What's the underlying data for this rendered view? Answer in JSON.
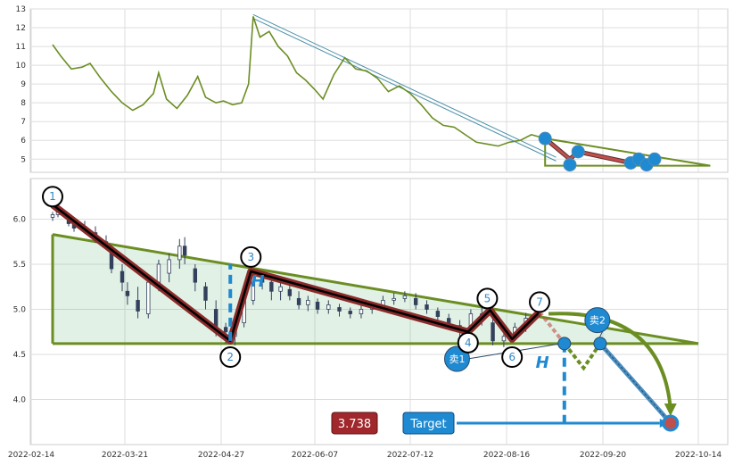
{
  "chart_data": [
    {
      "type": "line",
      "panel": "top",
      "ylim": [
        4.3,
        13
      ],
      "yticks": [
        "5",
        "6",
        "7",
        "8",
        "9",
        "10",
        "11",
        "12",
        "13"
      ],
      "series": [
        {
          "color": "#6b8e23",
          "points": [
            [
              "2022-02-22",
              11.1
            ],
            [
              "2022-02-25",
              10.5
            ],
            [
              "2022-03-01",
              9.8
            ],
            [
              "2022-03-05",
              9.9
            ],
            [
              "2022-03-08",
              10.1
            ],
            [
              "2022-03-12",
              9.3
            ],
            [
              "2022-03-16",
              8.6
            ],
            [
              "2022-03-20",
              8.0
            ],
            [
              "2022-03-24",
              7.6
            ],
            [
              "2022-03-28",
              7.9
            ],
            [
              "2022-04-01",
              8.5
            ],
            [
              "2022-04-03",
              9.6
            ],
            [
              "2022-04-06",
              8.2
            ],
            [
              "2022-04-10",
              7.7
            ],
            [
              "2022-04-14",
              8.4
            ],
            [
              "2022-04-18",
              9.4
            ],
            [
              "2022-04-21",
              8.3
            ],
            [
              "2022-04-25",
              8.0
            ],
            [
              "2022-04-28",
              8.1
            ],
            [
              "2022-05-02",
              7.9
            ],
            [
              "2022-05-06",
              8.0
            ],
            [
              "2022-05-09",
              9.0
            ],
            [
              "2022-05-11",
              12.6
            ],
            [
              "2022-05-14",
              11.5
            ],
            [
              "2022-05-18",
              11.8
            ],
            [
              "2022-05-22",
              11.0
            ],
            [
              "2022-05-26",
              10.5
            ],
            [
              "2022-05-30",
              9.6
            ],
            [
              "2022-06-03",
              9.2
            ],
            [
              "2022-06-07",
              8.7
            ],
            [
              "2022-06-10",
              8.2
            ],
            [
              "2022-06-14",
              9.5
            ],
            [
              "2022-06-18",
              10.4
            ],
            [
              "2022-06-22",
              9.8
            ],
            [
              "2022-06-26",
              9.7
            ],
            [
              "2022-06-30",
              9.3
            ],
            [
              "2022-07-04",
              8.6
            ],
            [
              "2022-07-08",
              8.9
            ],
            [
              "2022-07-12",
              8.5
            ],
            [
              "2022-07-16",
              7.9
            ],
            [
              "2022-07-20",
              7.2
            ],
            [
              "2022-07-24",
              6.8
            ],
            [
              "2022-07-28",
              6.7
            ],
            [
              "2022-08-01",
              6.3
            ],
            [
              "2022-08-05",
              5.9
            ],
            [
              "2022-08-09",
              5.8
            ],
            [
              "2022-08-13",
              5.7
            ],
            [
              "2022-08-17",
              5.9
            ],
            [
              "2022-08-21",
              6.0
            ],
            [
              "2022-08-25",
              6.3
            ],
            [
              "2022-08-30",
              6.1
            ]
          ]
        }
      ],
      "trendlines": [
        {
          "from": [
            "2022-05-11",
            12.7
          ],
          "to": [
            "2022-09-03",
            5.1
          ],
          "color": "#4a8fa8"
        },
        {
          "from": [
            "2022-05-11",
            12.5
          ],
          "to": [
            "2022-09-03",
            4.9
          ],
          "color": "#4a8fa8"
        }
      ],
      "zigzag": [
        [
          "2022-08-30",
          6.1
        ],
        [
          "2022-09-08",
          5.0
        ],
        [
          "2022-09-11",
          5.4
        ],
        [
          "2022-09-27",
          4.8
        ],
        [
          "2022-09-29",
          5.0
        ],
        [
          "2022-10-02",
          4.8
        ],
        [
          "2022-10-04",
          5.0
        ]
      ],
      "markers": [
        [
          "2022-08-30",
          6.1
        ],
        [
          "2022-09-08",
          4.7
        ],
        [
          "2022-09-11",
          5.4
        ],
        [
          "2022-09-27",
          4.8
        ],
        [
          "2022-09-29",
          5.0
        ],
        [
          "2022-10-01",
          4.7
        ],
        [
          "2022-10-03",
          5.0
        ]
      ],
      "triangle": [
        [
          "2022-08-30",
          6.1
        ],
        [
          "2022-08-30",
          4.65
        ],
        [
          "2022-10-17",
          4.65
        ]
      ]
    },
    {
      "type": "candlestick",
      "panel": "bottom",
      "ylim": [
        3.5,
        6.45
      ],
      "yticks": [
        "4.0",
        "4.5",
        "5.0",
        "5.5",
        "6.0"
      ],
      "x_tick_labels": [
        "2022-02-14",
        "2022-03-21",
        "2022-04-27",
        "2022-06-07",
        "2022-07-12",
        "2022-08-16",
        "2022-09-20",
        "2022-10-14"
      ],
      "x_tick_dates": [
        "2022-02-14",
        "2022-03-21",
        "2022-04-27",
        "2022-06-07",
        "2022-07-12",
        "2022-08-16",
        "2022-09-20",
        "2022-10-14"
      ],
      "candles": [
        [
          "2022-02-22",
          6.02,
          6.05,
          5.98,
          6.08
        ],
        [
          "2022-02-24",
          6.05,
          6.08,
          6.02,
          6.12
        ],
        [
          "2022-02-28",
          6.0,
          5.95,
          5.92,
          6.04
        ],
        [
          "2022-03-02",
          5.95,
          5.9,
          5.86,
          6.0
        ],
        [
          "2022-03-06",
          5.92,
          5.88,
          5.84,
          5.98
        ],
        [
          "2022-03-10",
          5.85,
          5.8,
          5.74,
          5.92
        ],
        [
          "2022-03-14",
          5.75,
          5.7,
          5.66,
          5.82
        ],
        [
          "2022-03-16",
          5.65,
          5.45,
          5.4,
          5.7
        ],
        [
          "2022-03-20",
          5.42,
          5.3,
          5.2,
          5.5
        ],
        [
          "2022-03-22",
          5.2,
          5.15,
          5.05,
          5.3
        ],
        [
          "2022-03-26",
          5.1,
          4.98,
          4.9,
          5.25
        ],
        [
          "2022-03-30",
          4.95,
          5.3,
          4.9,
          5.35
        ],
        [
          "2022-04-03",
          5.3,
          5.5,
          5.2,
          5.55
        ],
        [
          "2022-04-07",
          5.4,
          5.55,
          5.3,
          5.62
        ],
        [
          "2022-04-11",
          5.55,
          5.7,
          5.45,
          5.78
        ],
        [
          "2022-04-13",
          5.7,
          5.6,
          5.5,
          5.8
        ],
        [
          "2022-04-17",
          5.45,
          5.3,
          5.2,
          5.5
        ],
        [
          "2022-04-21",
          5.25,
          5.1,
          5.0,
          5.3
        ],
        [
          "2022-04-25",
          5.0,
          4.8,
          4.7,
          5.1
        ],
        [
          "2022-04-29",
          4.8,
          4.75,
          4.62,
          4.85
        ],
        [
          "2022-05-03",
          4.7,
          4.85,
          4.6,
          4.9
        ],
        [
          "2022-05-07",
          4.85,
          5.1,
          4.8,
          5.2
        ],
        [
          "2022-05-11",
          5.1,
          5.4,
          5.05,
          5.45
        ],
        [
          "2022-05-15",
          5.35,
          5.3,
          5.22,
          5.42
        ],
        [
          "2022-05-19",
          5.3,
          5.2,
          5.1,
          5.35
        ],
        [
          "2022-05-23",
          5.2,
          5.25,
          5.1,
          5.3
        ],
        [
          "2022-05-27",
          5.22,
          5.15,
          5.1,
          5.3
        ],
        [
          "2022-05-31",
          5.12,
          5.05,
          5.0,
          5.2
        ],
        [
          "2022-06-04",
          5.05,
          5.1,
          4.98,
          5.15
        ],
        [
          "2022-06-08",
          5.08,
          5.0,
          4.95,
          5.12
        ],
        [
          "2022-06-12",
          5.0,
          5.05,
          4.95,
          5.1
        ],
        [
          "2022-06-16",
          5.02,
          4.98,
          4.92,
          5.06
        ],
        [
          "2022-06-20",
          4.98,
          4.95,
          4.9,
          5.02
        ],
        [
          "2022-06-24",
          4.95,
          5.0,
          4.9,
          5.05
        ],
        [
          "2022-06-28",
          5.0,
          5.02,
          4.95,
          5.08
        ],
        [
          "2022-07-02",
          5.02,
          5.1,
          4.98,
          5.15
        ],
        [
          "2022-07-06",
          5.1,
          5.12,
          5.05,
          5.18
        ],
        [
          "2022-07-10",
          5.12,
          5.15,
          5.08,
          5.2
        ],
        [
          "2022-07-14",
          5.12,
          5.05,
          5.0,
          5.18
        ],
        [
          "2022-07-18",
          5.05,
          5.0,
          4.95,
          5.1
        ],
        [
          "2022-07-22",
          4.98,
          4.92,
          4.88,
          5.02
        ],
        [
          "2022-07-26",
          4.9,
          4.85,
          4.8,
          4.95
        ],
        [
          "2022-07-30",
          4.82,
          4.75,
          4.7,
          4.88
        ],
        [
          "2022-08-03",
          4.78,
          4.95,
          4.72,
          5.0
        ],
        [
          "2022-08-07",
          4.95,
          4.9,
          4.82,
          5.02
        ],
        [
          "2022-08-11",
          4.85,
          4.65,
          4.6,
          4.9
        ],
        [
          "2022-08-15",
          4.65,
          4.7,
          4.58,
          4.78
        ],
        [
          "2022-08-19",
          4.7,
          4.8,
          4.65,
          4.85
        ],
        [
          "2022-08-23",
          4.8,
          4.9,
          4.75,
          4.96
        ]
      ],
      "triangle": [
        [
          "2022-02-22",
          5.83
        ],
        [
          "2022-02-22",
          4.62
        ],
        [
          "2022-10-14",
          4.62
        ]
      ],
      "zigzag": [
        [
          "2022-02-22",
          6.16
        ],
        [
          "2022-05-01",
          4.65
        ],
        [
          "2022-05-10",
          5.42
        ],
        [
          "2022-08-02",
          4.75
        ],
        [
          "2022-08-10",
          4.99
        ],
        [
          "2022-08-18",
          4.67
        ],
        [
          "2022-08-28",
          4.97
        ]
      ],
      "numbered_points": [
        {
          "label": "1",
          "point": [
            "2022-02-22",
            6.25
          ]
        },
        {
          "label": "2",
          "point": [
            "2022-05-01",
            4.47
          ]
        },
        {
          "label": "3",
          "point": [
            "2022-05-10",
            5.58
          ]
        },
        {
          "label": "4",
          "point": [
            "2022-08-02",
            4.63
          ]
        },
        {
          "label": "5",
          "point": [
            "2022-08-09",
            5.12
          ]
        },
        {
          "label": "6",
          "point": [
            "2022-08-18",
            4.47
          ]
        },
        {
          "label": "7",
          "point": [
            "2022-08-28",
            5.08
          ]
        }
      ],
      "h_guides": [
        {
          "x": "2022-05-01",
          "from": 4.65,
          "to": 5.5
        },
        {
          "x": "2022-09-06",
          "from": 3.73,
          "to": 4.62
        }
      ],
      "projection": [
        [
          "2022-08-28",
          4.97
        ],
        [
          "2022-09-06",
          4.62
        ],
        [
          "2022-09-13",
          4.35
        ],
        [
          "2022-09-19",
          4.62
        ],
        [
          "2022-10-07",
          3.74
        ]
      ],
      "sell_markers": [
        {
          "label": "卖1",
          "point": [
            "2022-07-29",
            4.45
          ]
        },
        {
          "label": "卖2",
          "point": [
            "2022-09-18",
            4.88
          ]
        }
      ],
      "target": {
        "label": "Target",
        "value_label": "3.738",
        "value": 3.738,
        "point": [
          "2022-10-07",
          3.738
        ]
      },
      "h_labels": [
        {
          "text": "H",
          "point": [
            "2022-05-13",
            5.25
          ]
        },
        {
          "text": "H",
          "point": [
            "2022-08-29",
            4.35
          ]
        }
      ]
    }
  ]
}
